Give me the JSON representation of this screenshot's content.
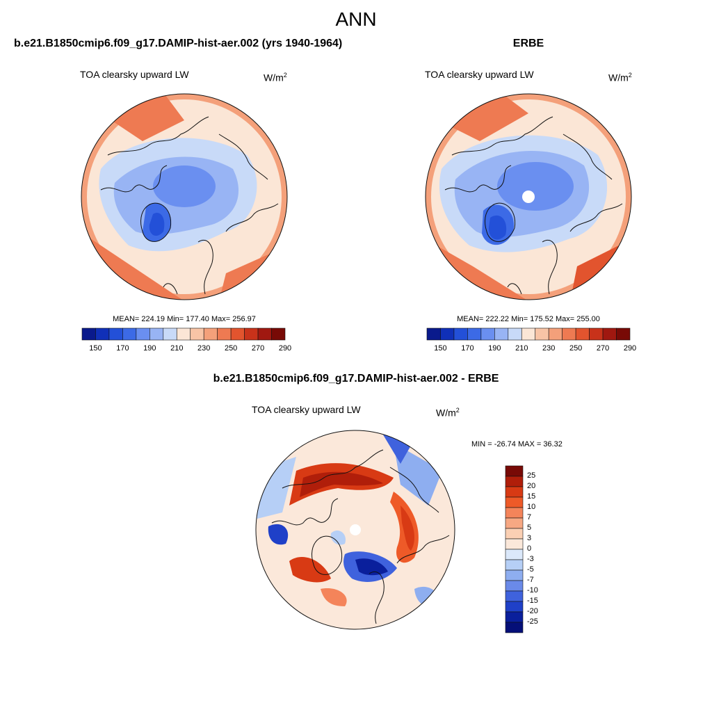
{
  "page": {
    "season": "ANN",
    "left_title": "b.e21.B1850cmip6.f09_g17.DAMIP-hist-aer.002 (yrs 1940-1964)",
    "right_title": "ERBE",
    "diff_title": "b.e21.B1850cmip6.f09_g17.DAMIP-hist-aer.002 - ERBE"
  },
  "panels": {
    "left": {
      "variable": "TOA clearsky upward LW",
      "units": "W/m",
      "units_sup": "2",
      "stats": "MEAN= 224.19  Min= 177.40  Max= 256.97"
    },
    "right": {
      "variable": "TOA clearsky upward LW",
      "units": "W/m",
      "units_sup": "2",
      "stats": "MEAN= 222.22  Min= 175.52  Max= 255.00"
    },
    "diff": {
      "variable": "TOA clearsky upward LW",
      "units": "W/m",
      "units_sup": "2",
      "stats": "MIN = -26.74 MAX =  36.32"
    }
  },
  "colorbars": {
    "abs": {
      "colors": [
        "#0a1a8c",
        "#1030b8",
        "#2350d8",
        "#3c6ae6",
        "#6a8ff0",
        "#98b4f4",
        "#c8daf8",
        "#fbe6d6",
        "#f8c4a6",
        "#f4a07a",
        "#ee7a52",
        "#e2542e",
        "#c8321a",
        "#a01810",
        "#780a06"
      ],
      "tick_labels": [
        "150",
        "170",
        "190",
        "210",
        "230",
        "250",
        "270",
        "290"
      ]
    },
    "diff": {
      "colors": [
        "#780a06",
        "#b01e0a",
        "#d83a14",
        "#ee5a28",
        "#f4845a",
        "#f7a883",
        "#fbd0b4",
        "#fbe8da",
        "#dbe8fa",
        "#b6cff6",
        "#8eaef0",
        "#6a8ae8",
        "#3f62dd",
        "#1f40c8",
        "#0a1f9c",
        "#050f78"
      ],
      "tick_labels": [
        "25",
        "20",
        "15",
        "10",
        "7",
        "5",
        "3",
        "0",
        "-3",
        "-5",
        "-7",
        "-10",
        "-15",
        "-20",
        "-25"
      ]
    }
  }
}
